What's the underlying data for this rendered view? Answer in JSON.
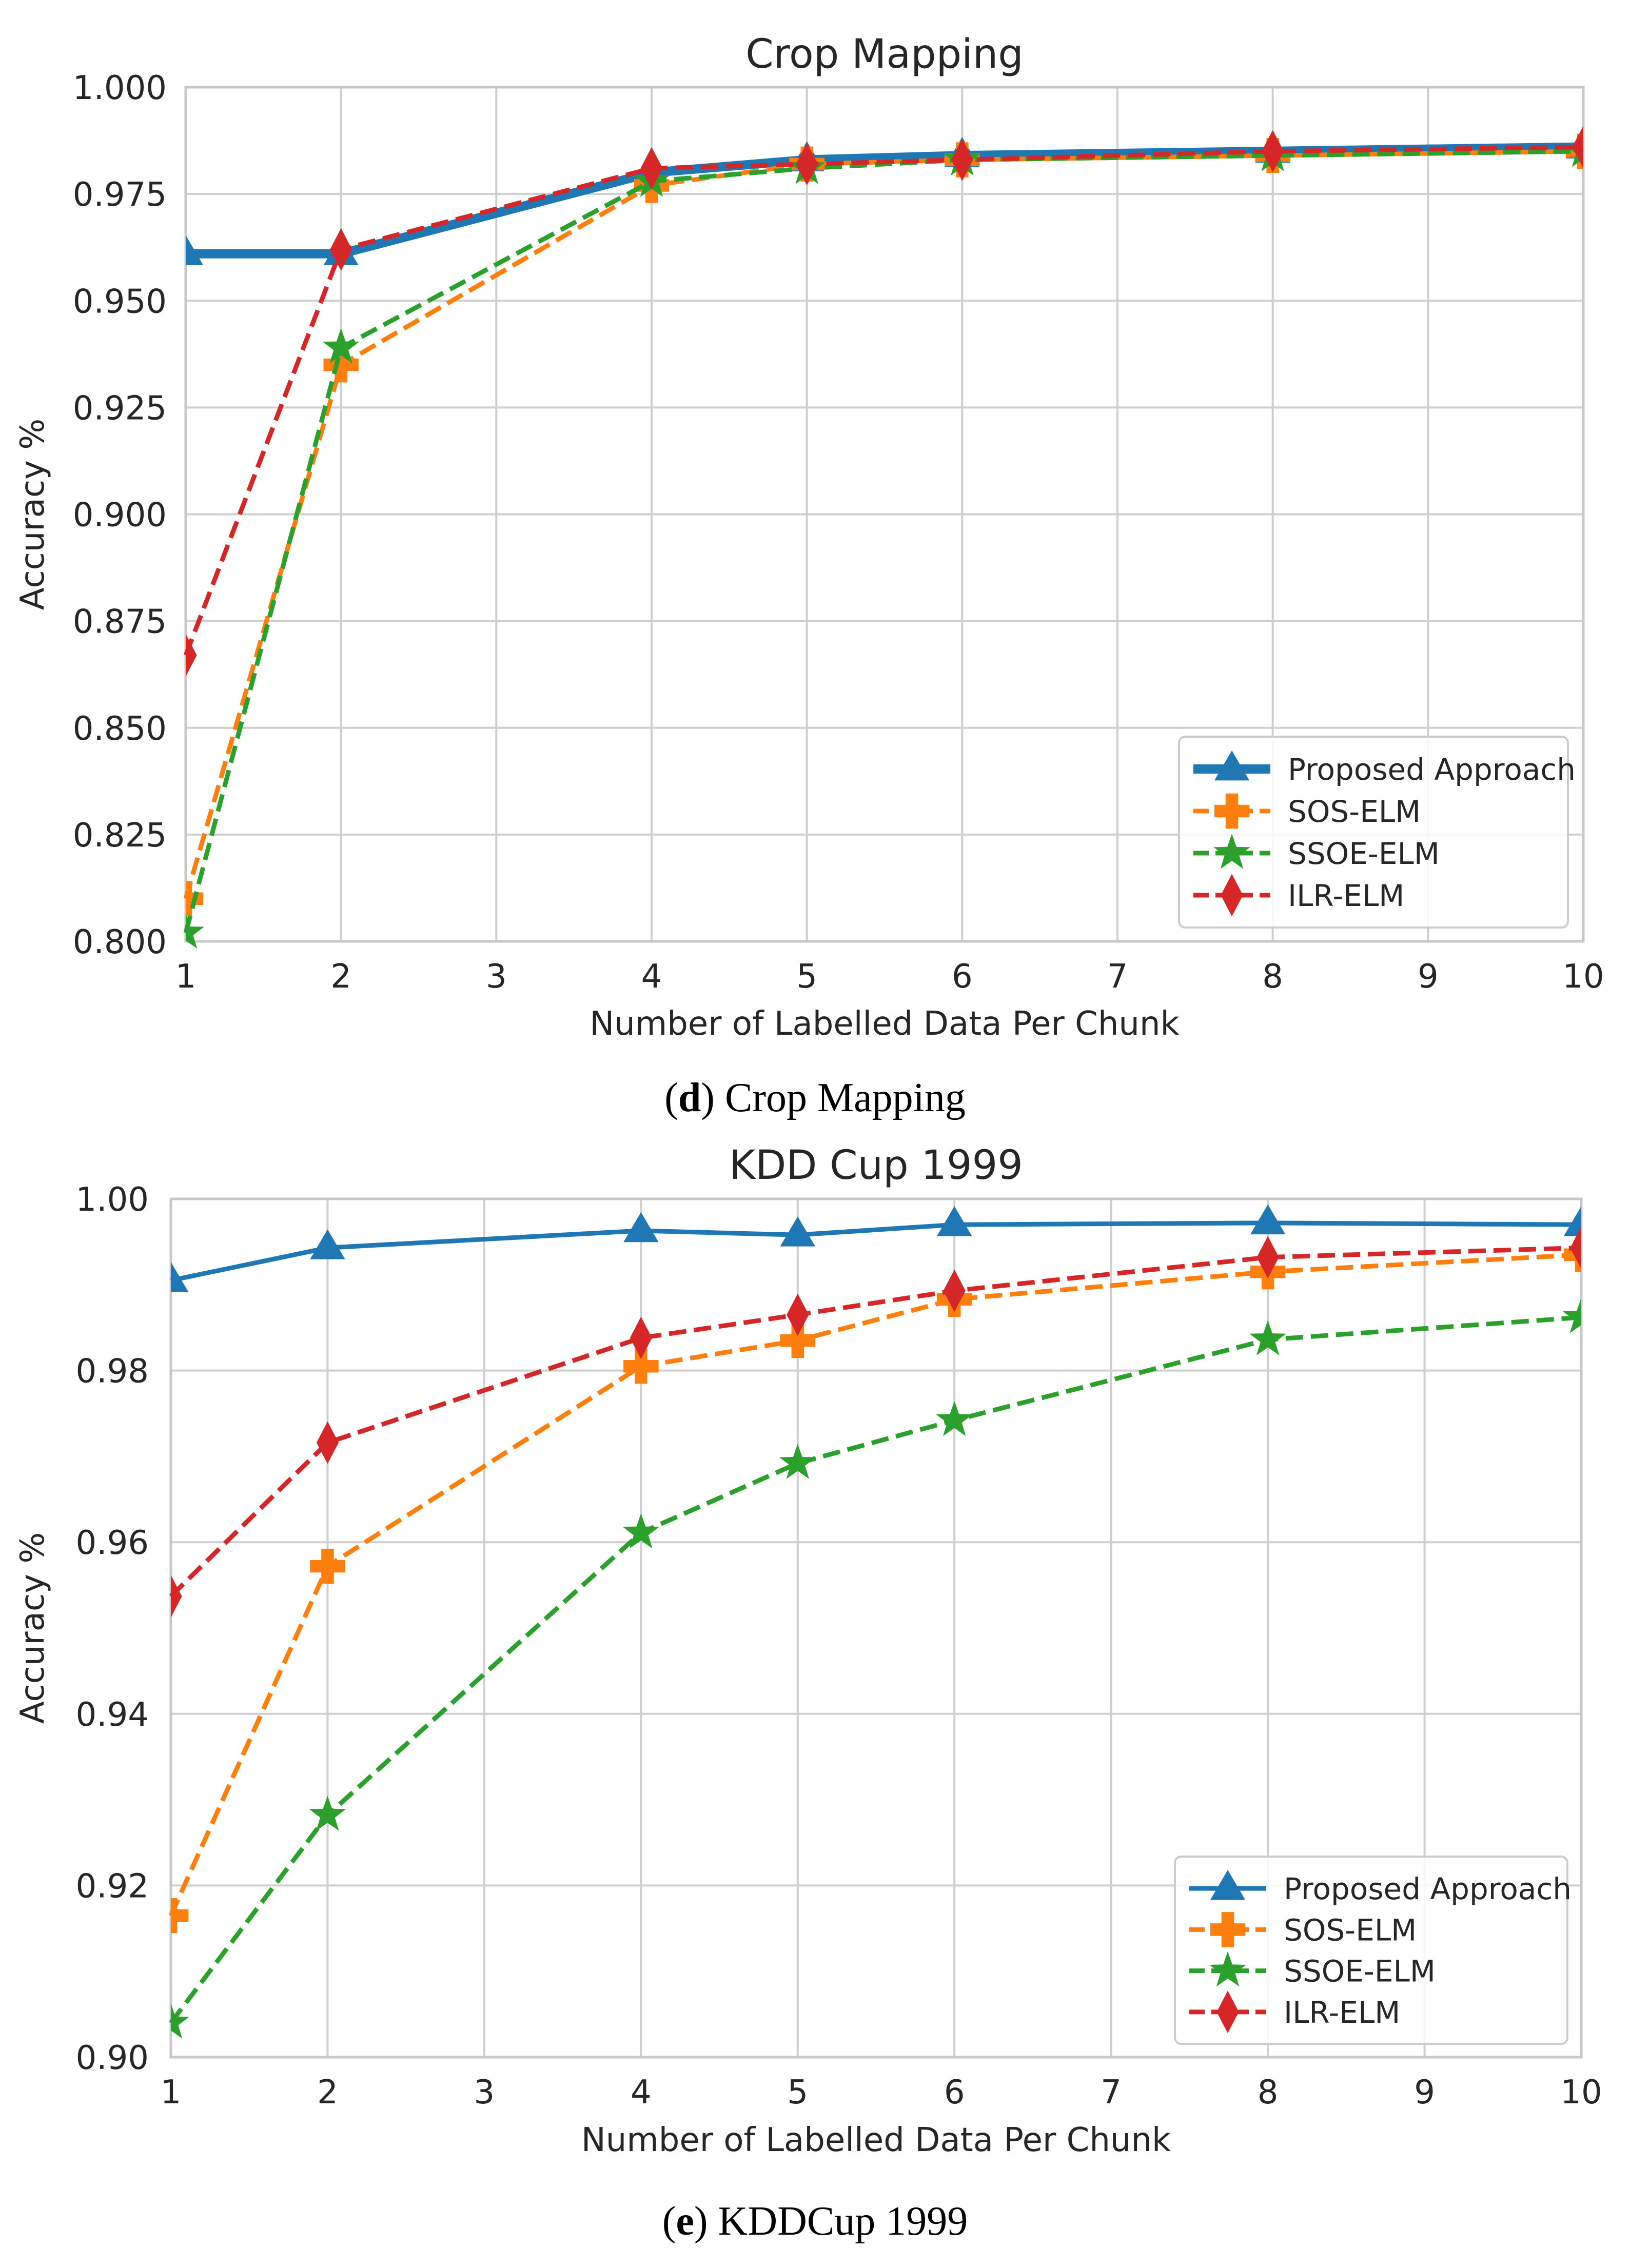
{
  "chart_data": [
    {
      "type": "line",
      "title": "Crop Mapping",
      "xlabel": "Number of Labelled Data Per Chunk",
      "ylabel": "Accuracy %",
      "xlim": [
        1,
        10
      ],
      "ylim": [
        0.8,
        1.0
      ],
      "xticks": [
        "1",
        "2",
        "3",
        "4",
        "5",
        "6",
        "7",
        "8",
        "9",
        "10"
      ],
      "yticks": [
        "0.800",
        "0.825",
        "0.850",
        "0.875",
        "0.900",
        "0.925",
        "0.950",
        "0.975",
        "1.000"
      ],
      "grid": true,
      "legend_position": "bottom-right",
      "caption_letter": "d",
      "caption_text": " Crop Mapping",
      "x": [
        1,
        2,
        4,
        5,
        6,
        8,
        10
      ],
      "series": [
        {
          "name": "Proposed Approach",
          "values": [
            0.961,
            0.961,
            0.98,
            0.983,
            0.984,
            0.985,
            0.986
          ],
          "color": "#1f77b4",
          "style": "solid",
          "marker": "triangle",
          "thick": true
        },
        {
          "name": "SOS-ELM",
          "values": [
            0.81,
            0.935,
            0.977,
            0.982,
            0.983,
            0.984,
            0.985
          ],
          "color": "#ff7f0e",
          "style": "dashed",
          "marker": "plus"
        },
        {
          "name": "SSOE-ELM",
          "values": [
            0.802,
            0.939,
            0.978,
            0.981,
            0.983,
            0.984,
            0.985
          ],
          "color": "#2ca02c",
          "style": "dashed",
          "marker": "star"
        },
        {
          "name": "ILR-ELM",
          "values": [
            0.867,
            0.962,
            0.981,
            0.982,
            0.983,
            0.985,
            0.986
          ],
          "color": "#d62728",
          "style": "dashed",
          "marker": "diamond"
        }
      ]
    },
    {
      "type": "line",
      "title": "KDD Cup 1999",
      "xlabel": "Number of Labelled Data Per Chunk",
      "ylabel": "Accuracy %",
      "xlim": [
        1,
        10
      ],
      "ylim": [
        0.9,
        1.0
      ],
      "xticks": [
        "1",
        "2",
        "3",
        "4",
        "5",
        "6",
        "7",
        "8",
        "9",
        "10"
      ],
      "yticks": [
        "0.90",
        "0.92",
        "0.94",
        "0.96",
        "0.98",
        "1.00"
      ],
      "grid": true,
      "legend_position": "bottom-right",
      "caption_letter": "e",
      "caption_text": " KDDCup 1999",
      "x": [
        1,
        2,
        4,
        5,
        6,
        8,
        10
      ],
      "series": [
        {
          "name": "Proposed Approach",
          "values": [
            0.9905,
            0.9943,
            0.9963,
            0.9958,
            0.997,
            0.9972,
            0.997
          ],
          "color": "#1f77b4",
          "style": "solid",
          "marker": "triangle",
          "thick": false
        },
        {
          "name": "SOS-ELM",
          "values": [
            0.9165,
            0.9572,
            0.9805,
            0.9835,
            0.9883,
            0.9915,
            0.9935
          ],
          "color": "#ff7f0e",
          "style": "dashed",
          "marker": "plus"
        },
        {
          "name": "SSOE-ELM",
          "values": [
            0.904,
            0.9282,
            0.9611,
            0.9692,
            0.9742,
            0.9836,
            0.9862
          ],
          "color": "#2ca02c",
          "style": "dashed",
          "marker": "star"
        },
        {
          "name": "ILR-ELM",
          "values": [
            0.9537,
            0.9716,
            0.9838,
            0.9865,
            0.9893,
            0.9932,
            0.9943
          ],
          "color": "#d62728",
          "style": "dashed",
          "marker": "diamond"
        }
      ]
    }
  ]
}
